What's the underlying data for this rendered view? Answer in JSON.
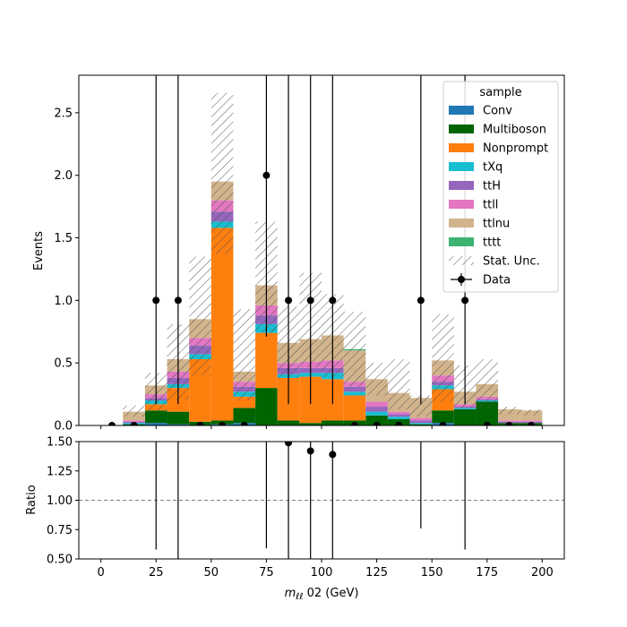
{
  "chart_data": [
    {
      "type": "bar",
      "stacked": true,
      "xlabel": "m_ℓℓ 02 (GeV)",
      "ylabel": "Events",
      "xlim": [
        -10,
        210
      ],
      "ylim": [
        0,
        2.8
      ],
      "xticks": [
        0,
        25,
        50,
        75,
        100,
        125,
        150,
        175,
        200
      ],
      "yticks": [
        0.0,
        0.5,
        1.0,
        1.5,
        2.0,
        2.5
      ],
      "bin_edges": [
        0,
        10,
        20,
        30,
        40,
        50,
        60,
        70,
        80,
        90,
        100,
        110,
        120,
        130,
        140,
        150,
        160,
        170,
        180,
        190,
        200
      ],
      "series": [
        {
          "name": "Conv",
          "color": "#1f77b4",
          "values": [
            0,
            0,
            0.02,
            0.01,
            0,
            0.01,
            0.02,
            0,
            0,
            0,
            0,
            0,
            0,
            0,
            0,
            0.02,
            0,
            0,
            0,
            0
          ]
        },
        {
          "name": "Multiboson",
          "color": "#006400",
          "values": [
            0,
            0.01,
            0.1,
            0.1,
            0.03,
            0.03,
            0.12,
            0.3,
            0.04,
            0.02,
            0.04,
            0.04,
            0.08,
            0.05,
            0.01,
            0.1,
            0.13,
            0.19,
            0.02,
            0.02
          ]
        },
        {
          "name": "Nonprompt",
          "color": "#ff7f0e",
          "values": [
            0,
            0,
            0.05,
            0.19,
            0.5,
            1.54,
            0.09,
            0.44,
            0.34,
            0.37,
            0.33,
            0.2,
            0,
            0,
            0,
            0.17,
            0,
            0,
            0,
            0
          ]
        },
        {
          "name": "tXq",
          "color": "#17becf",
          "values": [
            0,
            0.01,
            0.03,
            0.03,
            0.04,
            0.05,
            0.04,
            0.07,
            0.03,
            0.03,
            0.05,
            0.03,
            0.03,
            0.02,
            0.01,
            0.03,
            0.01,
            0.01,
            0,
            0
          ]
        },
        {
          "name": "ttH",
          "color": "#9467bd",
          "values": [
            0,
            0.01,
            0.02,
            0.05,
            0.07,
            0.08,
            0.04,
            0.07,
            0.05,
            0.04,
            0.04,
            0.04,
            0.04,
            0.02,
            0.02,
            0.03,
            0.01,
            0.01,
            0.01,
            0.01
          ]
        },
        {
          "name": "ttll",
          "color": "#e377c2",
          "values": [
            0,
            0.01,
            0.03,
            0.05,
            0.06,
            0.09,
            0.04,
            0.08,
            0.04,
            0.05,
            0.06,
            0.04,
            0.04,
            0.02,
            0.02,
            0.05,
            0.02,
            0.02,
            0.01,
            0.01
          ]
        },
        {
          "name": "ttlnu",
          "color": "#d2b48c",
          "values": [
            0,
            0.07,
            0.07,
            0.1,
            0.15,
            0.15,
            0.08,
            0.16,
            0.16,
            0.18,
            0.2,
            0.25,
            0.18,
            0.15,
            0.16,
            0.12,
            0.1,
            0.1,
            0.09,
            0.08
          ]
        },
        {
          "name": "tttt",
          "color": "#3cb371",
          "values": [
            0,
            0,
            0,
            0,
            0,
            0,
            0,
            0,
            0,
            0,
            0,
            0.01,
            0,
            0,
            0,
            0,
            0,
            0,
            0,
            0
          ]
        }
      ],
      "stat_unc": {
        "name": "Stat. Unc.",
        "lower": [
          0,
          0.07,
          0.1,
          0.2,
          0.4,
          1.37,
          0.2,
          0.74,
          0.38,
          0.47,
          0.39,
          0.31,
          0.24,
          0.13,
          0.07,
          0.19,
          0.14,
          0.13,
          0.09,
          0.08
        ],
        "upper": [
          0,
          0.16,
          0.42,
          0.81,
          1.35,
          2.66,
          0.93,
          1.63,
          0.95,
          1.22,
          1.05,
          0.91,
          0.5,
          0.53,
          0.24,
          0.89,
          0.48,
          0.53,
          0.15,
          0.13
        ]
      },
      "data": {
        "name": "Data",
        "x": [
          5,
          15,
          25,
          35,
          45,
          55,
          65,
          75,
          85,
          95,
          105,
          115,
          125,
          135,
          145,
          155,
          165,
          175,
          185,
          195
        ],
        "y": [
          0,
          0,
          1,
          1,
          0,
          0,
          0,
          2,
          1,
          1,
          1,
          0,
          0,
          0,
          1,
          0,
          1,
          0,
          0,
          0
        ],
        "yerr_low": [
          0,
          0,
          0.83,
          0.83,
          0,
          0,
          0,
          1.29,
          0.83,
          0.83,
          0.83,
          0,
          0,
          0,
          0.83,
          0,
          0.83,
          0,
          0,
          0
        ],
        "yerr_high": [
          0,
          0,
          2.3,
          2.3,
          0,
          0,
          0,
          2.64,
          2.3,
          2.3,
          2.3,
          0,
          0,
          0,
          2.3,
          0,
          2.3,
          0,
          0,
          0
        ]
      },
      "legend": {
        "title": "sample",
        "placement": "top-right"
      }
    },
    {
      "type": "scatter",
      "ylabel": "Ratio",
      "xlabel": "m_ℓℓ 02 (GeV)",
      "xlim": [
        -10,
        210
      ],
      "ylim": [
        0.5,
        1.5
      ],
      "yticks": [
        0.5,
        0.75,
        1.0,
        1.25,
        1.5
      ],
      "reference_line": 1.0,
      "points": [
        {
          "x": 85,
          "y": 1.49
        },
        {
          "x": 95,
          "y": 1.42
        },
        {
          "x": 105,
          "y": 1.39
        }
      ],
      "error_bars": [
        {
          "x": 25,
          "low": 0.58,
          "high": 1.5
        },
        {
          "x": 35,
          "low": 0.5,
          "high": 1.5
        },
        {
          "x": 75,
          "low": 0.59,
          "high": 1.5
        },
        {
          "x": 85,
          "low": 0.5,
          "high": 1.5
        },
        {
          "x": 95,
          "low": 0.5,
          "high": 1.5
        },
        {
          "x": 105,
          "low": 0.5,
          "high": 1.5
        },
        {
          "x": 145,
          "low": 0.76,
          "high": 1.5
        },
        {
          "x": 165,
          "low": 0.58,
          "high": 1.5
        }
      ]
    }
  ]
}
